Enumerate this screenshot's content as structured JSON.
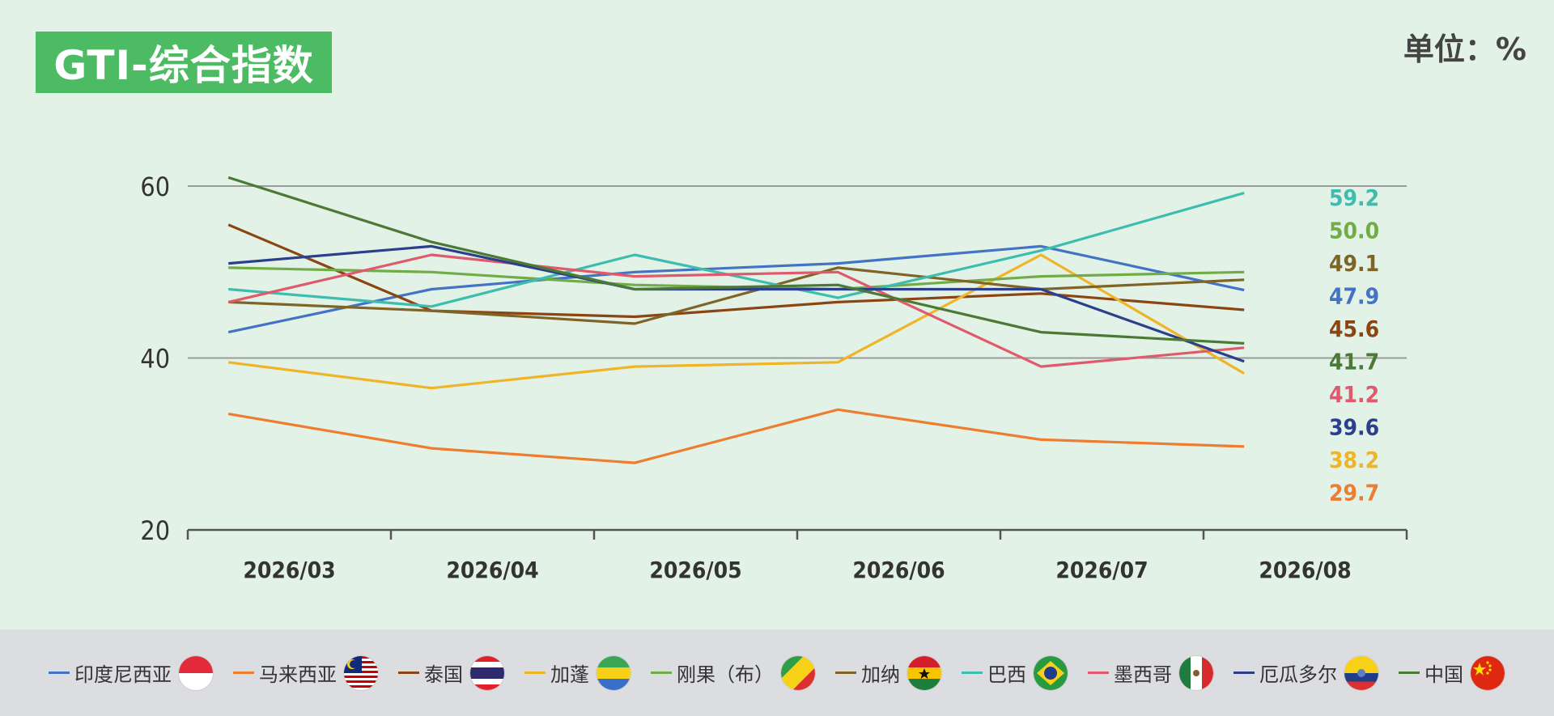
{
  "header": {
    "title": "GTI-综合指数",
    "unit": "单位：%"
  },
  "chart_data": {
    "type": "line",
    "categories": [
      "2026/03",
      "2026/04",
      "2026/05",
      "2026/06",
      "2026/07",
      "2026/08"
    ],
    "ylim": [
      20,
      60
    ],
    "yticks": [
      20,
      40,
      60
    ],
    "grid": true,
    "legend_position": "bottom",
    "series": [
      {
        "name": "印度尼西亚",
        "color": "#4472c4",
        "values": [
          43.0,
          48.0,
          50.0,
          51.0,
          53.0,
          47.9
        ]
      },
      {
        "name": "马来西亚",
        "color": "#ed7d31",
        "values": [
          33.5,
          29.5,
          27.8,
          34.0,
          30.5,
          29.7
        ]
      },
      {
        "name": "泰国",
        "color": "#8b4513",
        "values": [
          55.5,
          45.5,
          44.8,
          46.5,
          47.5,
          45.6
        ]
      },
      {
        "name": "加蓬",
        "color": "#f0b429",
        "values": [
          39.5,
          36.5,
          39.0,
          39.5,
          52.0,
          38.2
        ]
      },
      {
        "name": "刚果（布）",
        "color": "#70ad47",
        "values": [
          50.5,
          50.0,
          48.5,
          48.0,
          49.5,
          50.0
        ]
      },
      {
        "name": "加纳",
        "color": "#7f6428",
        "values": [
          46.5,
          45.5,
          44.0,
          50.5,
          48.0,
          49.1
        ]
      },
      {
        "name": "巴西",
        "color": "#3cbdb0",
        "values": [
          48.0,
          46.0,
          52.0,
          47.0,
          52.5,
          59.2
        ]
      },
      {
        "name": "墨西哥",
        "color": "#e05a6d",
        "values": [
          46.5,
          52.0,
          49.5,
          50.0,
          39.0,
          41.2
        ]
      },
      {
        "name": "厄瓜多尔",
        "color": "#2b3f8c",
        "values": [
          51.0,
          53.0,
          48.0,
          48.0,
          48.0,
          39.6
        ]
      },
      {
        "name": "中国",
        "color": "#4a7a35",
        "values": [
          61.0,
          53.5,
          48.0,
          48.5,
          43.0,
          41.7
        ]
      }
    ],
    "end_labels": [
      {
        "text": "59.2",
        "color": "#3cbdb0"
      },
      {
        "text": "50.0",
        "color": "#70ad47"
      },
      {
        "text": "49.1",
        "color": "#7f6428"
      },
      {
        "text": "47.9",
        "color": "#4472c4"
      },
      {
        "text": "45.6",
        "color": "#8b4513"
      },
      {
        "text": "41.7",
        "color": "#4a7a35"
      },
      {
        "text": "41.2",
        "color": "#e05a6d"
      },
      {
        "text": "39.6",
        "color": "#2b3f8c"
      },
      {
        "text": "38.2",
        "color": "#f0b429"
      },
      {
        "text": "29.7",
        "color": "#ed7d31"
      }
    ]
  },
  "legend": {
    "items": [
      {
        "label": "印度尼西亚",
        "color": "#4472c4",
        "flag": "indonesia-flag-icon"
      },
      {
        "label": "马来西亚",
        "color": "#ed7d31",
        "flag": "malaysia-flag-icon"
      },
      {
        "label": "泰国",
        "color": "#8b4513",
        "flag": "thailand-flag-icon"
      },
      {
        "label": "加蓬",
        "color": "#f0b429",
        "flag": "gabon-flag-icon"
      },
      {
        "label": "刚果（布）",
        "color": "#70ad47",
        "flag": "congo-flag-icon"
      },
      {
        "label": "加纳",
        "color": "#7f6428",
        "flag": "ghana-flag-icon"
      },
      {
        "label": "巴西",
        "color": "#3cbdb0",
        "flag": "brazil-flag-icon"
      },
      {
        "label": "墨西哥",
        "color": "#e05a6d",
        "flag": "mexico-flag-icon"
      },
      {
        "label": "厄瓜多尔",
        "color": "#2b3f8c",
        "flag": "ecuador-flag-icon"
      },
      {
        "label": "中国",
        "color": "#4a7a35",
        "flag": "china-flag-icon"
      }
    ]
  }
}
